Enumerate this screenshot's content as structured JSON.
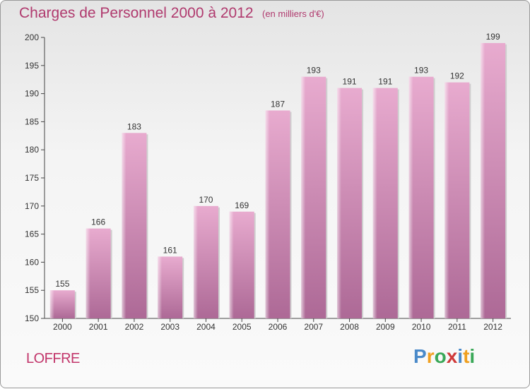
{
  "header": {
    "title": "Charges de Personnel 2000 à 2012",
    "subtitle": "(en milliers d'€)"
  },
  "footer": {
    "commune": "LOFFRE",
    "logo": "Proxiti"
  },
  "colors": {
    "bar_top": "#e6a9cd",
    "bar_bottom": "#b06c98",
    "title": "#b03a6e"
  },
  "chart_data": {
    "type": "bar",
    "categories": [
      "2000",
      "2001",
      "2002",
      "2003",
      "2004",
      "2005",
      "2006",
      "2007",
      "2008",
      "2009",
      "2010",
      "2011",
      "2012"
    ],
    "values": [
      155,
      166,
      183,
      161,
      170,
      169,
      187,
      193,
      191,
      191,
      193,
      192,
      199
    ],
    "title": "Charges de Personnel 2000 à 2012",
    "subtitle": "(en milliers d'€)",
    "ylim": [
      150,
      200
    ],
    "yticks": [
      150,
      155,
      160,
      165,
      170,
      175,
      180,
      185,
      190,
      195,
      200
    ],
    "grid": false,
    "data_labels": true
  }
}
